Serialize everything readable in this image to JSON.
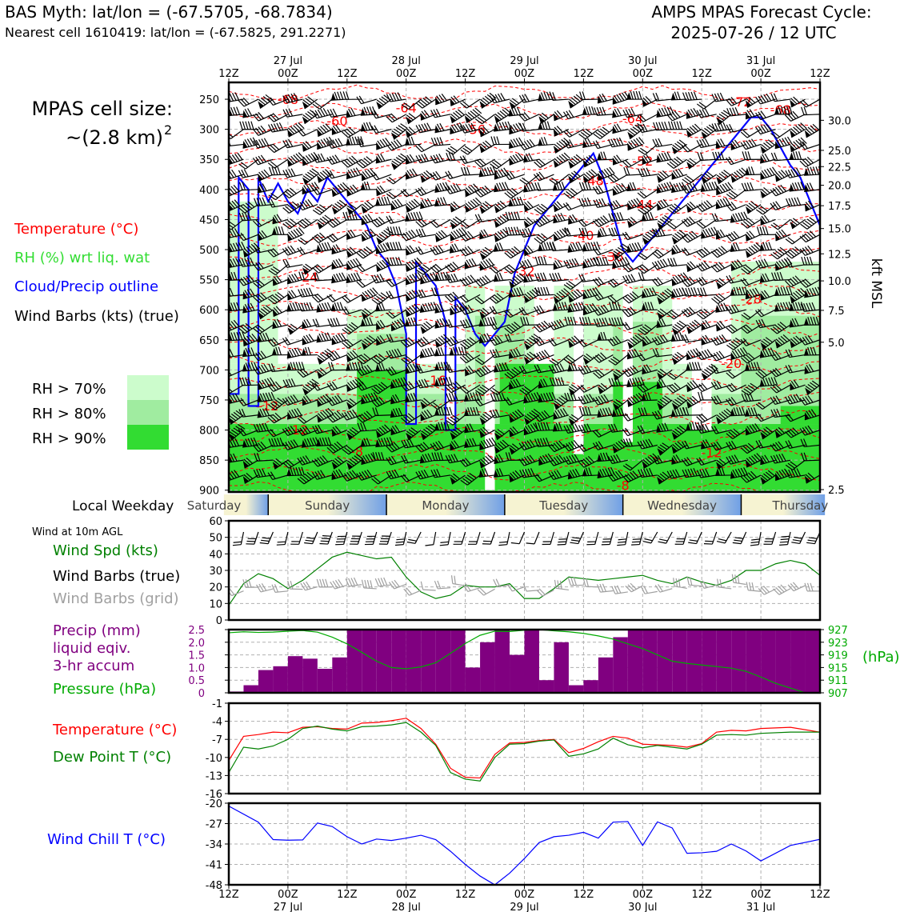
{
  "header": {
    "title_left": "BAS Myth: lat/lon = (-67.5705, -68.7834)",
    "subtitle_left": "Nearest cell 1610419: lat/lon = (-67.5825, 291.2271)",
    "title_right_1": "AMPS MPAS Forecast Cycle:",
    "title_right_2": "2025-07-26 / 12 UTC"
  },
  "side_labels": {
    "cell_size_1": "MPAS cell size:",
    "cell_size_2": "~(2.8 km)",
    "cell_size_sup": "2",
    "legend_temperature": "Temperature (°C)",
    "legend_rh": "RH (%) wrt liq. wat",
    "legend_cloud": "Cloud/Precip outline",
    "legend_wind": "Wind Barbs (kts) (true)",
    "rh70": "RH > 70%",
    "rh80": "RH > 80%",
    "rh90": "RH > 90%",
    "local_weekday": "Local Weekday",
    "wind_10m": "Wind at 10m AGL",
    "wind_spd": "Wind Spd (kts)",
    "wind_barbs_true": "Wind Barbs (true)",
    "wind_barbs_grid": "Wind Barbs (grid)",
    "precip_1": "Precip (mm)",
    "precip_2": "liquid eqiv.",
    "precip_3": "3-hr accum",
    "pressure": "Pressure (hPa)",
    "temperature": "Temperature (°C)",
    "dewpoint": "Dew Point T (°C)",
    "windchill": "Wind Chill T (°C)",
    "kft_msl": "kft MSL",
    "hpa_unit": "(hPa)"
  },
  "colors": {
    "temperature": "#ff0000",
    "rh_label": "#33dd33",
    "cloud": "#0000ff",
    "rh70": "#ccfccc",
    "rh80": "#a0eca0",
    "rh90": "#32dc32",
    "precip": "#800080",
    "pressure": "#00aa00",
    "dewpoint": "#008000",
    "windspd": "#008000",
    "barb_grid": "#a0a0a0",
    "windchill": "#0000ff"
  },
  "chart_data": [
    {
      "name": "time-height cross section",
      "type": "heatmap",
      "x_ticks_top": [
        "12Z",
        "00Z",
        "12Z",
        "00Z",
        "12Z",
        "00Z",
        "12Z",
        "00Z",
        "12Z",
        "00Z",
        "12Z"
      ],
      "x_dates_top": [
        "27 Jul",
        "28 Jul",
        "29 Jul",
        "30 Jul",
        "31 Jul"
      ],
      "y_pressure_ticks": [
        250,
        300,
        350,
        400,
        450,
        500,
        550,
        600,
        650,
        700,
        750,
        800,
        850,
        900
      ],
      "y_kft_ticks": [
        "30.0",
        "25.0",
        "22.5",
        "20.0",
        "17.5",
        "15.0",
        "12.5",
        "10.0",
        "7.5",
        "5.0",
        "2.5"
      ],
      "y_kft_pressure": [
        285,
        335,
        362,
        393,
        427,
        465,
        507,
        552,
        601,
        654,
        710
      ],
      "temperature_contour_labels": [
        {
          "t": 6,
          "p": 258,
          "label": "-68"
        },
        {
          "t": 18,
          "p": 272,
          "label": "-64"
        },
        {
          "t": 11,
          "p": 294,
          "label": "-60"
        },
        {
          "t": 25,
          "p": 308,
          "label": "-56"
        },
        {
          "t": 41,
          "p": 290,
          "label": "-64"
        },
        {
          "t": 42,
          "p": 360,
          "label": "-52"
        },
        {
          "t": 37,
          "p": 393,
          "label": "-48"
        },
        {
          "t": 42,
          "p": 433,
          "label": "-44"
        },
        {
          "t": 36,
          "p": 484,
          "label": "-40"
        },
        {
          "t": 39,
          "p": 519,
          "label": "-36"
        },
        {
          "t": 30,
          "p": 543,
          "label": "-32"
        },
        {
          "t": 8,
          "p": 553,
          "label": "-24"
        },
        {
          "t": 53,
          "p": 590,
          "label": "-28"
        },
        {
          "t": 51,
          "p": 697,
          "label": "-20"
        },
        {
          "t": 21,
          "p": 725,
          "label": "-16"
        },
        {
          "t": 4,
          "p": 767,
          "label": "-12"
        },
        {
          "t": 7,
          "p": 807,
          "label": "-12"
        },
        {
          "t": 13,
          "p": 843,
          "label": "-8"
        },
        {
          "t": 40,
          "p": 900,
          "label": "-8"
        },
        {
          "t": 49,
          "p": 845,
          "label": "-12"
        },
        {
          "t": 52,
          "p": 262,
          "label": "-72"
        },
        {
          "t": 56,
          "p": 275,
          "label": "-68"
        }
      ]
    },
    {
      "name": "local weekday",
      "type": "table",
      "days": [
        "Saturday",
        "Sunday",
        "Monday",
        "Tuesday",
        "Wednesday",
        "Thursday"
      ]
    },
    {
      "name": "10m wind speed",
      "type": "line",
      "x_hours": [
        0,
        3,
        6,
        9,
        12,
        15,
        18,
        21,
        24,
        27,
        30,
        33,
        36,
        39,
        42,
        45,
        48,
        51,
        54,
        57,
        60,
        63,
        66,
        69,
        72,
        75,
        78,
        81,
        84,
        87,
        90,
        93,
        96,
        99,
        102,
        105,
        108,
        111,
        114,
        117,
        120
      ],
      "ylim": [
        0,
        60
      ],
      "yticks": [
        0,
        10,
        20,
        30,
        40,
        50,
        60
      ],
      "series": [
        {
          "name": "Wind Spd (kts)",
          "values": [
            9,
            22,
            28,
            25,
            19,
            24,
            31,
            38,
            41,
            39,
            37,
            38,
            26,
            17,
            13,
            15,
            21,
            20,
            20,
            22,
            13,
            13,
            19,
            26,
            25,
            24,
            25,
            26,
            27,
            24,
            22,
            26,
            23,
            21,
            24,
            30,
            30,
            34,
            36,
            34,
            27
          ]
        }
      ]
    },
    {
      "name": "precipitation and pressure",
      "type": "bar",
      "x_hours": [
        0,
        3,
        6,
        9,
        12,
        15,
        18,
        21,
        24,
        27,
        30,
        33,
        36,
        39,
        42,
        45,
        48,
        51,
        54,
        57,
        60,
        63,
        66,
        69,
        72,
        75,
        78,
        81,
        84,
        87,
        90,
        93,
        96,
        99,
        102,
        105,
        108,
        111,
        114,
        117
      ],
      "ylim": [
        0,
        2.5
      ],
      "yticks": [
        0,
        0.5,
        1.0,
        1.5,
        2.0,
        2.5
      ],
      "y2lim": [
        907,
        927
      ],
      "y2ticks": [
        907,
        911,
        915,
        919,
        923,
        927
      ],
      "series": [
        {
          "name": "Precip (mm)",
          "values": [
            0.05,
            0.3,
            0.9,
            1.05,
            1.45,
            1.35,
            0.95,
            1.4,
            2.5,
            2.5,
            2.5,
            2.5,
            2.5,
            2.5,
            2.5,
            2.5,
            1.0,
            2.0,
            2.5,
            1.5,
            2.5,
            0.5,
            2.0,
            0.3,
            0.5,
            1.4,
            2.2,
            2.5,
            2.5,
            2.5,
            2.5,
            2.5,
            2.5,
            2.5,
            2.5,
            2.5,
            2.5,
            2.5,
            2.5,
            2.5
          ]
        },
        {
          "name": "Pressure (hPa)",
          "values": [
            926,
            926.3,
            926.1,
            926.2,
            926.5,
            926.7,
            926.2,
            924.6,
            922.5,
            919.8,
            917,
            915,
            914.6,
            915.2,
            916.5,
            919.5,
            922.6,
            925.2,
            926.5,
            926.4,
            926.8,
            927,
            926.6,
            926.3,
            925.8,
            925,
            924,
            922.5,
            921,
            919,
            917,
            916.3,
            915.8,
            915.3,
            914.8,
            913.8,
            912,
            910,
            908.5,
            907
          ]
        }
      ]
    },
    {
      "name": "temperature and dew point",
      "type": "line",
      "ylim": [
        -16,
        -1
      ],
      "yticks": [
        -1,
        -4,
        -7,
        -10,
        -13,
        -16
      ],
      "series": [
        {
          "name": "Temperature (°C)",
          "values": [
            -10.5,
            -6.5,
            -6.2,
            -5.8,
            -5.9,
            -5.0,
            -4.9,
            -5.2,
            -5.3,
            -4.3,
            -4.2,
            -3.9,
            -3.5,
            -5.2,
            -7.8,
            -11.8,
            -13.3,
            -13.4,
            -9.5,
            -7.6,
            -7.5,
            -7.2,
            -7.0,
            -9.2,
            -8.5,
            -7.4,
            -6.5,
            -6.8,
            -7.8,
            -7.9,
            -8.0,
            -8.3,
            -7.7,
            -5.8,
            -5.5,
            -5.6,
            -5.2,
            -5.0,
            -5.8
          ]
        },
        {
          "name": "Dew Point T (°C)",
          "values": [
            -12.5,
            -8.3,
            -8.6,
            -8.1,
            -7.0,
            -5.2,
            -4.8,
            -5.3,
            -5.6,
            -4.9,
            -4.8,
            -4.6,
            -4.2,
            -5.8,
            -8.0,
            -12.5,
            -13.6,
            -13.9,
            -10.0,
            -7.8,
            -7.7,
            -7.3,
            -7.1,
            -9.8,
            -9.4,
            -8.6,
            -6.8,
            -7.9,
            -8.4,
            -8.0,
            -8.3,
            -8.6,
            -7.8,
            -6.3,
            -6.2,
            -6.3,
            -6.0,
            -5.8,
            -5.8
          ]
        }
      ],
      "x_hours": [
        0,
        3,
        6,
        9,
        12,
        15,
        18,
        21,
        24,
        27,
        30,
        33,
        36,
        39,
        42,
        45,
        48,
        51,
        54,
        57,
        60,
        63,
        66,
        69,
        72,
        75,
        78,
        81,
        84,
        87,
        90,
        93,
        96,
        99,
        102,
        105,
        108,
        114,
        120
      ]
    },
    {
      "name": "wind chill",
      "type": "line",
      "ylim": [
        -48,
        -20
      ],
      "yticks": [
        -20,
        -27,
        -34,
        -41,
        -48
      ],
      "x_hours": [
        0,
        6,
        9,
        12,
        15,
        18,
        21,
        24,
        27,
        30,
        33,
        36,
        39,
        42,
        45,
        48,
        51,
        54,
        57,
        60,
        63,
        66,
        69,
        72,
        75,
        78,
        81,
        84,
        87,
        90,
        93,
        96,
        99,
        102,
        105,
        108,
        114,
        120
      ],
      "series": [
        {
          "name": "Wind Chill T (°C)",
          "values": [
            -21,
            -26.5,
            -32.5,
            -32.7,
            -32.6,
            -26.8,
            -28,
            -31.5,
            -34,
            -32.3,
            -32.8,
            -32,
            -31,
            -32.5,
            -36.5,
            -41,
            -45,
            -48,
            -44,
            -39,
            -33.5,
            -31.5,
            -31,
            -30,
            -32,
            -26.5,
            -26.3,
            -34.5,
            -26.4,
            -28.5,
            -37.2,
            -37,
            -36.5,
            -34,
            -36.4,
            -39.8,
            -34.5,
            -32.4
          ]
        }
      ],
      "x_ticks_bottom": [
        "12Z",
        "00Z",
        "12Z",
        "00Z",
        "12Z",
        "00Z",
        "12Z",
        "00Z",
        "12Z",
        "00Z",
        "12Z"
      ],
      "x_dates_bottom": [
        "27 Jul",
        "28 Jul",
        "29 Jul",
        "30 Jul",
        "31 Jul"
      ]
    }
  ]
}
